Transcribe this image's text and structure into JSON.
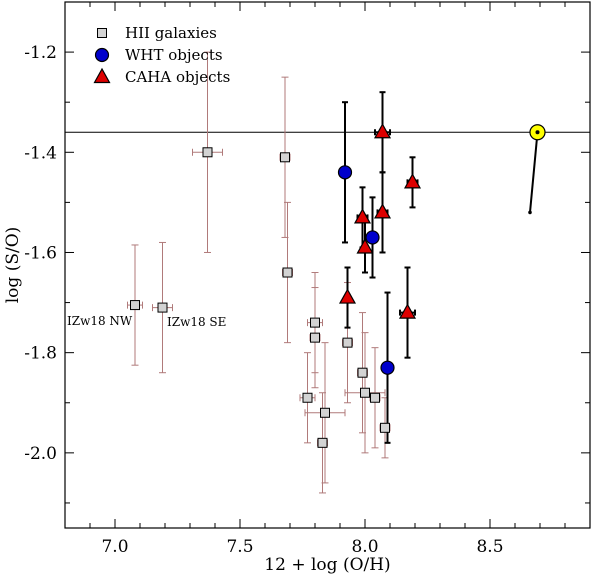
{
  "chart_data": {
    "type": "scatter",
    "title": "",
    "xlabel": "12 + log (O/H)",
    "ylabel": "log (S/O)",
    "xlim": [
      6.8,
      8.9
    ],
    "ylim": [
      -2.15,
      -1.1
    ],
    "x_ticks": [
      7.0,
      7.5,
      8.0,
      8.5
    ],
    "x_tick_labels": [
      "7.0",
      "7.5",
      "8.0",
      "8.5"
    ],
    "y_ticks": [
      -1.2,
      -1.4,
      -1.6,
      -1.8,
      -2.0
    ],
    "y_tick_labels": [
      "-1.2",
      "-1.4",
      "-1.6",
      "-1.8",
      "-2.0"
    ],
    "grid": false,
    "legend_position": "top-left",
    "reference_line_y": -1.36,
    "solar": {
      "x": 8.69,
      "y": -1.36,
      "x_end": 8.66,
      "y_end": -1.52,
      "color": "#ffff00"
    },
    "series": [
      {
        "name": "HII galaxies",
        "marker": "square",
        "color": "#d3d3d3",
        "errorbar_color": "#b07a7a",
        "points": [
          {
            "x": 7.37,
            "y": -1.4,
            "xerr": 0.06,
            "yerr": 0.2
          },
          {
            "x": 7.68,
            "y": -1.41,
            "xerr": 0.02,
            "yerr": 0.16
          },
          {
            "x": 7.69,
            "y": -1.64,
            "xerr": 0.02,
            "yerr": 0.14
          },
          {
            "x": 7.08,
            "y": -1.705,
            "xerr": 0.03,
            "yerr": 0.12
          },
          {
            "x": 7.19,
            "y": -1.71,
            "xerr": 0.04,
            "yerr": 0.13
          },
          {
            "x": 7.8,
            "y": -1.74,
            "xerr": 0.03,
            "yerr": 0.1
          },
          {
            "x": 7.8,
            "y": -1.77,
            "xerr": 0.02,
            "yerr": 0.1
          },
          {
            "x": 7.93,
            "y": -1.78,
            "xerr": 0.02,
            "yerr": 0.12
          },
          {
            "x": 7.99,
            "y": -1.84,
            "xerr": 0.02,
            "yerr": 0.12
          },
          {
            "x": 7.77,
            "y": -1.89,
            "xerr": 0.03,
            "yerr": 0.09
          },
          {
            "x": 8.0,
            "y": -1.88,
            "xerr": 0.08,
            "yerr": 0.12
          },
          {
            "x": 8.04,
            "y": -1.89,
            "xerr": 0.02,
            "yerr": 0.1
          },
          {
            "x": 7.84,
            "y": -1.92,
            "xerr": 0.08,
            "yerr": 0.14
          },
          {
            "x": 8.08,
            "y": -1.95,
            "xerr": 0.02,
            "yerr": 0.06
          },
          {
            "x": 7.83,
            "y": -1.98,
            "xerr": 0.02,
            "yerr": 0.1
          }
        ]
      },
      {
        "name": "WHT objects",
        "marker": "circle",
        "color": "#0000cc",
        "errorbar_color": "#000000",
        "points": [
          {
            "x": 7.92,
            "y": -1.44,
            "xerr": 0.01,
            "yerr": 0.14
          },
          {
            "x": 8.03,
            "y": -1.57,
            "xerr": 0.01,
            "yerr": 0.08
          },
          {
            "x": 8.09,
            "y": -1.83,
            "xerr": 0.01,
            "yerr": 0.15
          }
        ]
      },
      {
        "name": "CAHA objects",
        "marker": "triangle",
        "color": "#dd0000",
        "errorbar_color": "#000000",
        "points": [
          {
            "x": 8.07,
            "y": -1.36,
            "xerr": 0.03,
            "yerr": 0.08
          },
          {
            "x": 8.19,
            "y": -1.46,
            "xerr": 0.02,
            "yerr": 0.05
          },
          {
            "x": 7.99,
            "y": -1.53,
            "xerr": 0.02,
            "yerr": 0.06
          },
          {
            "x": 8.07,
            "y": -1.52,
            "xerr": 0.02,
            "yerr": 0.08
          },
          {
            "x": 8.0,
            "y": -1.59,
            "xerr": 0.01,
            "yerr": 0.05
          },
          {
            "x": 7.93,
            "y": -1.69,
            "xerr": 0.01,
            "yerr": 0.06
          },
          {
            "x": 8.17,
            "y": -1.72,
            "xerr": 0.03,
            "yerr": 0.09
          }
        ]
      }
    ],
    "annotations": [
      {
        "text": "IZw18 NW",
        "x": 6.8,
        "y": -1.745
      },
      {
        "text": "IZw18 SE",
        "x": 7.2,
        "y": -1.747
      }
    ]
  }
}
